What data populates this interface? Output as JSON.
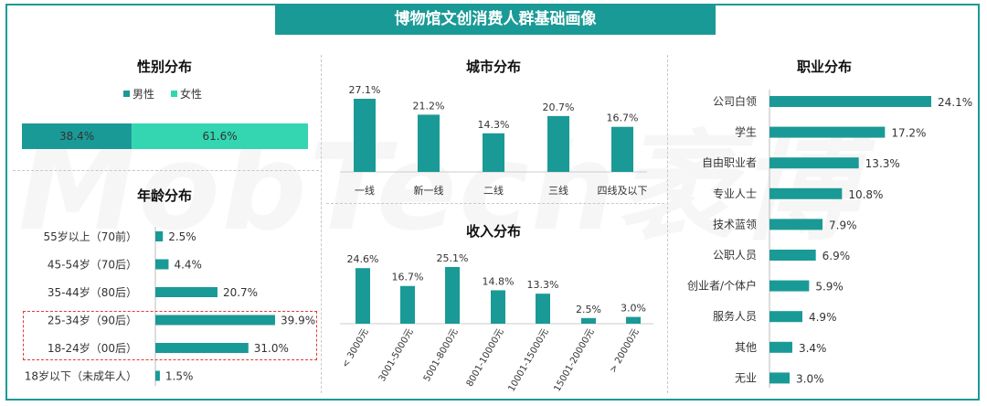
{
  "page_title": "博物馆文创消费人群基础画像",
  "watermark_text": "MobTech袤博",
  "colors": {
    "primary": "#1a9a96",
    "secondary": "#33d6b0",
    "highlight_border": "#e53935"
  },
  "chart_data": [
    {
      "id": "gender",
      "type": "bar",
      "title": "性别分布",
      "series": [
        {
          "name": "男性",
          "values": [
            38.4
          ],
          "color": "#1a9a96"
        },
        {
          "name": "女性",
          "values": [
            61.6
          ],
          "color": "#33d6b0"
        }
      ],
      "value_labels": [
        "38.4%",
        "61.6%"
      ],
      "legend_position": "top"
    },
    {
      "id": "age",
      "type": "bar",
      "title": "年龄分布",
      "categories": [
        "55岁以上（70前）",
        "45-54岁（70后）",
        "35-44岁（80后）",
        "25-34岁（90后）",
        "18-24岁（00后）",
        "18岁以下（未成年人）"
      ],
      "values": [
        2.5,
        4.4,
        20.7,
        39.9,
        31.0,
        1.5
      ],
      "value_labels": [
        "2.5%",
        "4.4%",
        "20.7%",
        "39.9%",
        "31.0%",
        "1.5%"
      ],
      "highlighted": [
        "25-34岁（90后）",
        "18-24岁（00后）"
      ]
    },
    {
      "id": "city",
      "type": "bar",
      "title": "城市分布",
      "categories": [
        "一线",
        "新一线",
        "二线",
        "三线",
        "四线及以下"
      ],
      "values": [
        27.1,
        21.2,
        14.3,
        20.7,
        16.7
      ],
      "value_labels": [
        "27.1%",
        "21.2%",
        "14.3%",
        "20.7%",
        "16.7%"
      ]
    },
    {
      "id": "income",
      "type": "bar",
      "title": "收入分布",
      "categories": [
        "< 3000元",
        "3001-5000元",
        "5001-8000元",
        "8001-10000元",
        "10001-15000元",
        "15001-20000元",
        "> 20000元"
      ],
      "values": [
        24.6,
        16.7,
        25.1,
        14.8,
        13.3,
        2.5,
        3.0
      ],
      "value_labels": [
        "24.6%",
        "16.7%",
        "25.1%",
        "14.8%",
        "13.3%",
        "2.5%",
        "3.0%"
      ]
    },
    {
      "id": "occupation",
      "type": "bar",
      "title": "职业分布",
      "categories": [
        "公司白领",
        "学生",
        "自由职业者",
        "专业人士",
        "技术蓝领",
        "公职人员",
        "创业者/个体户",
        "服务人员",
        "其他",
        "无业"
      ],
      "values": [
        24.1,
        17.2,
        13.3,
        10.8,
        7.9,
        6.9,
        5.9,
        4.9,
        3.4,
        3.0
      ],
      "value_labels": [
        "24.1%",
        "17.2%",
        "13.3%",
        "10.8%",
        "7.9%",
        "6.9%",
        "5.9%",
        "4.9%",
        "3.4%",
        "3.0%"
      ]
    }
  ]
}
